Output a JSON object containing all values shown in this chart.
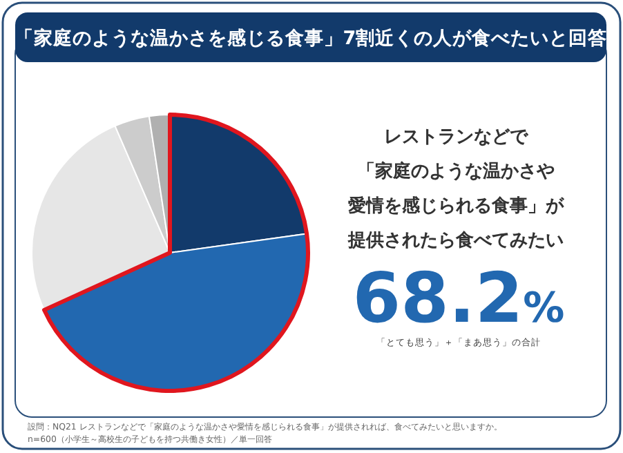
{
  "chart_data": {
    "type": "pie",
    "title": "「家庭のような温かさを感じる食事」7割近くの人が食べたいと回答",
    "categories": [
      null,
      null,
      null,
      null,
      null
    ],
    "values": [
      22.8,
      45.4,
      25.3,
      4.1,
      2.4
    ],
    "colors": [
      "#123a6b",
      "#2268b0",
      "#e6e6e6",
      "#cccccc",
      "#b0b0b0"
    ],
    "annotations": [
      "レストランなどで",
      "「家庭のような温かさや",
      "愛情を感じられる食事」が",
      "提供されたら食べてみたい",
      "68.2%",
      "「とても思う」＋「まあ思う」の合計",
      "設問：NQ21 レストランなどで「家庭のような温かさや愛情を感じられる食事」が提供されれば、食べてみたいと思いますか。",
      "n=600（小学生～高校生の子どもを持つ共働き女性）／単一回答"
    ]
  }
}
